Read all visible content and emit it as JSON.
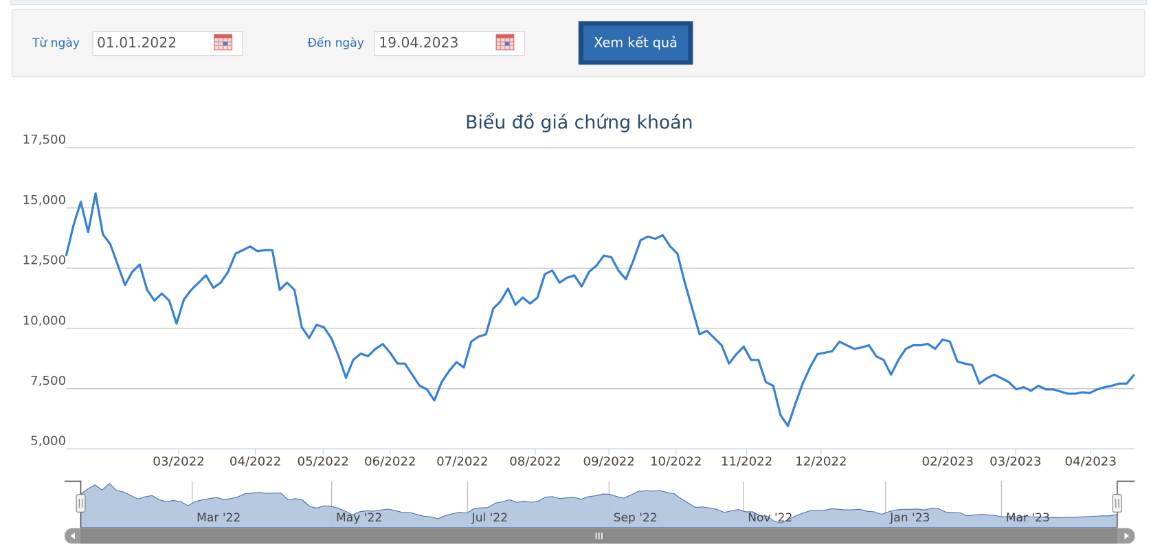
{
  "form": {
    "from_label": "Từ ngày",
    "from_value": "01.01.2022",
    "to_label": "Đến ngày",
    "to_value": "19.04.2023",
    "button": "Xem kết quả"
  },
  "chart_data": {
    "type": "line",
    "title": "Biểu đồ giá chứng khoán",
    "color": "#3680d6",
    "values": [
      13000,
      14270,
      15250,
      14000,
      15600,
      13900,
      13500,
      12650,
      11800,
      12350,
      12650,
      11600,
      11150,
      11450,
      11150,
      10200,
      11200,
      11600,
      11900,
      12200,
      11680,
      11900,
      12350,
      13100,
      13250,
      13400,
      13200,
      13250,
      13250,
      11600,
      11900,
      11600,
      10050,
      9600,
      10150,
      10050,
      9600,
      8850,
      7950,
      8700,
      8950,
      8850,
      9150,
      9350,
      8990,
      8540,
      8540,
      8080,
      7620,
      7470,
      7010,
      7780,
      8230,
      8600,
      8380,
      9450,
      9660,
      9750,
      10820,
      11130,
      11650,
      10980,
      11280,
      11030,
      11280,
      12250,
      12400,
      11900,
      12100,
      12200,
      11740,
      12350,
      12600,
      13020,
      12960,
      12400,
      12040,
      12800,
      13660,
      13810,
      13720,
      13870,
      13410,
      13100,
      11900,
      10830,
      9760,
      9900,
      9600,
      9300,
      8540,
      8930,
      9240,
      8690,
      8690,
      7770,
      7620,
      6400,
      5950,
      6860,
      7710,
      8380,
      8930,
      8990,
      9050,
      9450,
      9300,
      9150,
      9210,
      9300,
      8840,
      8690,
      8080,
      8690,
      9150,
      9300,
      9300,
      9360,
      9150,
      9540,
      9450,
      8630,
      8540,
      8480,
      7710,
      7930,
      8080,
      7930,
      7770,
      7470,
      7560,
      7410,
      7620,
      7470,
      7470,
      7380,
      7290,
      7290,
      7350,
      7320,
      7470,
      7560,
      7620,
      7710,
      7710,
      8080
    ],
    "xlim": [
      0,
      145
    ],
    "ylim": [
      5000,
      17500
    ],
    "yticks": [
      {
        "value": 5000,
        "label": "5,000"
      },
      {
        "value": 7500,
        "label": "7,500"
      },
      {
        "value": 10000,
        "label": "10,000"
      },
      {
        "value": 12500,
        "label": "12,500"
      },
      {
        "value": 15000,
        "label": "15,000"
      },
      {
        "value": 17500,
        "label": "17,500"
      }
    ],
    "xticks": [
      {
        "value": 15.3,
        "label": "03/2022"
      },
      {
        "value": 25.7,
        "label": "04/2022"
      },
      {
        "value": 34.9,
        "label": "05/2022"
      },
      {
        "value": 44,
        "label": "06/2022"
      },
      {
        "value": 53.8,
        "label": "07/2022"
      },
      {
        "value": 63.7,
        "label": "08/2022"
      },
      {
        "value": 73.7,
        "label": "09/2022"
      },
      {
        "value": 82.8,
        "label": "10/2022"
      },
      {
        "value": 92.4,
        "label": "11/2022"
      },
      {
        "value": 102.5,
        "label": "12/2022"
      },
      {
        "value": 119.7,
        "label": "02/2023"
      },
      {
        "value": 128.9,
        "label": "03/2023"
      },
      {
        "value": 139.1,
        "label": "04/2023"
      }
    ],
    "grid": true,
    "navigator": {
      "color": "#b3c5df",
      "line_color": "#4a6fa5",
      "xticks": [
        {
          "value": 15.6,
          "label": "Mar '22"
        },
        {
          "value": 35.1,
          "label": "May '22"
        },
        {
          "value": 54.1,
          "label": "Jul '22"
        },
        {
          "value": 73.9,
          "label": "Sep '22"
        },
        {
          "value": 92.7,
          "label": "Nov '22"
        },
        {
          "value": 112.6,
          "label": "Jan '23"
        },
        {
          "value": 128.8,
          "label": "Mar '23"
        }
      ]
    }
  }
}
